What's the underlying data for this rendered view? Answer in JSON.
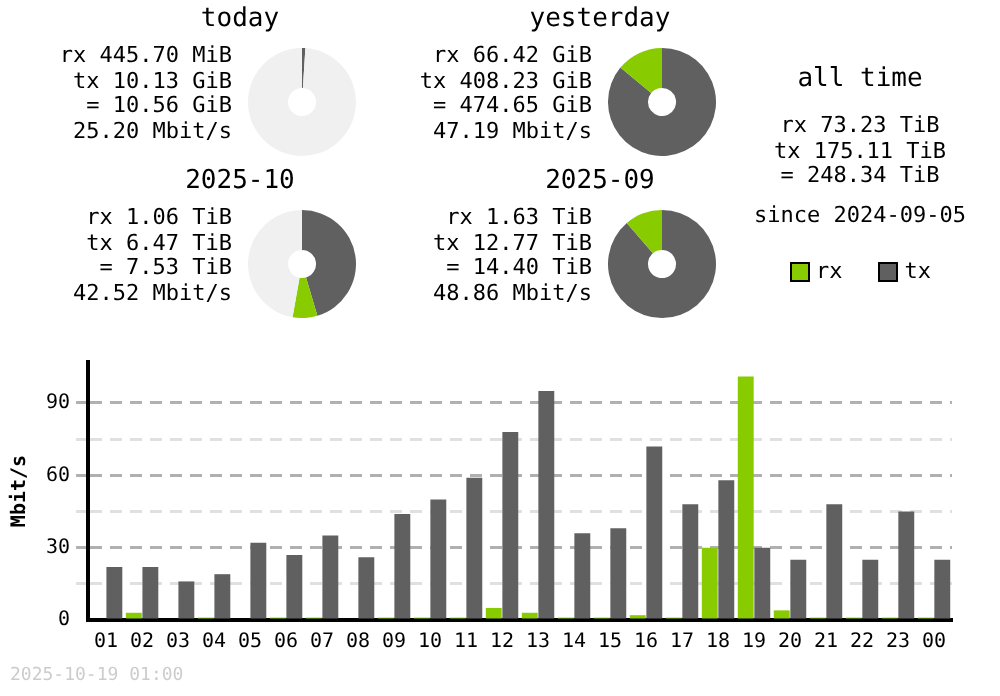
{
  "chart_data": [
    {
      "type": "donut",
      "title": "today",
      "annotations": [
        "rx 445.70 MiB",
        "tx 10.13 GiB",
        "= 10.56 GiB",
        "25.20 Mbit/s"
      ],
      "categories": [
        null,
        null,
        null
      ],
      "values": [
        1.0,
        0.0,
        99.0
      ],
      "colors": [
        "#606060",
        "#88cc00",
        "#f0f0f0"
      ]
    },
    {
      "type": "donut",
      "title": "yesterday",
      "annotations": [
        "rx 66.42 GiB",
        "tx 408.23 GiB",
        "= 474.65 GiB",
        "47.19 Mbit/s"
      ],
      "categories": [
        null,
        null
      ],
      "values": [
        86.0,
        14.0
      ],
      "colors": [
        "#606060",
        "#88cc00"
      ]
    },
    {
      "type": "other",
      "title": "all time",
      "annotations": [
        "rx 73.23 TiB",
        "tx 175.11 TiB",
        "= 248.34 TiB",
        "since 2024-09-05"
      ]
    },
    {
      "type": "donut",
      "title": "2025-10",
      "annotations": [
        "rx 1.06 TiB",
        "tx 6.47 TiB",
        "= 7.53 TiB",
        "42.52 Mbit/s"
      ],
      "categories": [
        null,
        null,
        null
      ],
      "values": [
        45.4,
        7.4,
        47.2
      ],
      "colors": [
        "#606060",
        "#88cc00",
        "#f0f0f0"
      ]
    },
    {
      "type": "donut",
      "title": "2025-09",
      "annotations": [
        "rx 1.63 TiB",
        "tx 12.77 TiB",
        "= 14.40 TiB",
        "48.86 Mbit/s"
      ],
      "categories": [
        null,
        null
      ],
      "values": [
        88.7,
        11.3
      ],
      "colors": [
        "#606060",
        "#88cc00"
      ]
    },
    {
      "type": "bar",
      "ylabel": "Mbit/s",
      "annotations": [
        "2025-10-19 01:00"
      ],
      "categories": [
        "01",
        "02",
        "03",
        "04",
        "05",
        "06",
        "07",
        "08",
        "09",
        "10",
        "11",
        "12",
        "13",
        "14",
        "15",
        "16",
        "17",
        "18",
        "19",
        "20",
        "21",
        "22",
        "23",
        "00"
      ],
      "series": [
        {
          "name": "rx",
          "color": "#88cc00",
          "values": [
            0,
            3,
            0,
            1,
            0,
            1,
            1,
            0,
            1,
            1,
            1,
            5,
            3,
            1,
            1,
            2,
            1,
            30,
            101,
            4,
            1,
            1,
            1,
            1
          ]
        },
        {
          "name": "tx",
          "color": "#606060",
          "values": [
            22,
            22,
            16,
            19,
            32,
            27,
            35,
            26,
            44,
            50,
            59,
            78,
            95,
            36,
            38,
            72,
            48,
            58,
            30,
            25,
            48,
            25,
            45,
            25
          ]
        }
      ],
      "ylim": [
        0,
        107
      ],
      "yticks": [
        0,
        {
          "value": 15,
          "label": null
        },
        30,
        {
          "value": 45,
          "label": null
        },
        60,
        {
          "value": 75,
          "label": null
        },
        90
      ],
      "grid": "y",
      "legend": "top right"
    }
  ]
}
